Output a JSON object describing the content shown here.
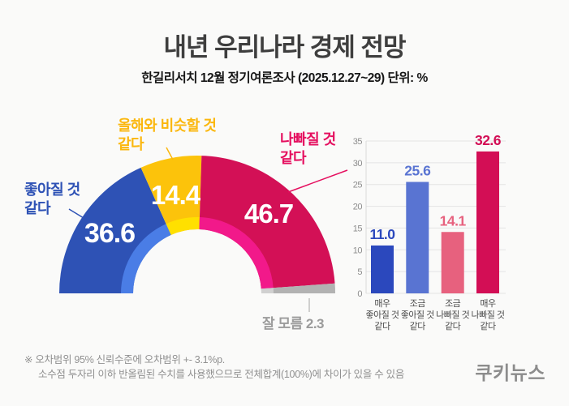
{
  "header": {
    "title": "내년 우리나라 경제 전망",
    "subtitle": "한길리서치 12월 정기여론조사 (2025.12.27~29) 단위: %"
  },
  "chart_data": [
    {
      "type": "pie",
      "subtype": "half_donut",
      "unit": "%",
      "total": 100,
      "segments": [
        {
          "key": "better",
          "label": "좋아질 것 같다",
          "label_lines": [
            "좋아질 것",
            "같다"
          ],
          "value": 36.6,
          "value_label": "36.6",
          "color": "#2e52b5",
          "rim_color": "#4a7de6",
          "text_color": "#2e52b5"
        },
        {
          "key": "similar",
          "label": "올해와 비슷할 것 같다",
          "label_lines": [
            "올해와 비슷할 것",
            "같다"
          ],
          "value": 14.4,
          "value_label": "14.4",
          "color": "#fcc30b",
          "rim_color": "#ffe000",
          "text_color": "#fbb70d"
        },
        {
          "key": "worse",
          "label": "나빠질 것 같다",
          "label_lines": [
            "나빠질 것",
            "같다"
          ],
          "value": 46.7,
          "value_label": "46.7",
          "color": "#d31056",
          "rim_color": "#f2198a",
          "text_color": "#e50f5f"
        },
        {
          "key": "dont_know",
          "label": "잘 모름",
          "label_lines": [
            "잘 모름"
          ],
          "value": 2.3,
          "value_label": "2.3",
          "color": "#b2b2b2",
          "rim_color": "#d0d0d0",
          "text_color": "#9b9b9b"
        }
      ]
    },
    {
      "type": "bar",
      "unit": "%",
      "categories": [
        "매우 좋아질 것 같다",
        "조금 좋아질 것 같다",
        "조금 나빠질 것 같다",
        "매우 나빠질 것 같다"
      ],
      "category_lines": [
        [
          "매우",
          "좋아질 것",
          "같다"
        ],
        [
          "조금",
          "좋아질 것",
          "같다"
        ],
        [
          "조금",
          "나빠질 것",
          "같다"
        ],
        [
          "매우",
          "나빠질 것",
          "같다"
        ]
      ],
      "values": [
        11.0,
        25.6,
        14.1,
        32.6
      ],
      "value_labels": [
        "11.0",
        "25.6",
        "14.1",
        "32.6"
      ],
      "bar_colors": [
        "#2b48bd",
        "#5974d2",
        "#e7617e",
        "#d30e55"
      ],
      "ylim": [
        0,
        35
      ],
      "ytick_step": 5,
      "yticks": [
        0,
        5,
        10,
        15,
        20,
        25,
        30,
        35
      ],
      "grid": true,
      "legend": null
    }
  ],
  "footer": {
    "note_line1": "※ 오차범위 95% 신뢰수준에 오차범위 +- 3.1%p.",
    "note_line2": "소수점 두자리 이하 반올림된 수치를 사용했으므로 전체합계(100%)에 차이가 있을 수 있음",
    "logo": "쿠키뉴스"
  }
}
